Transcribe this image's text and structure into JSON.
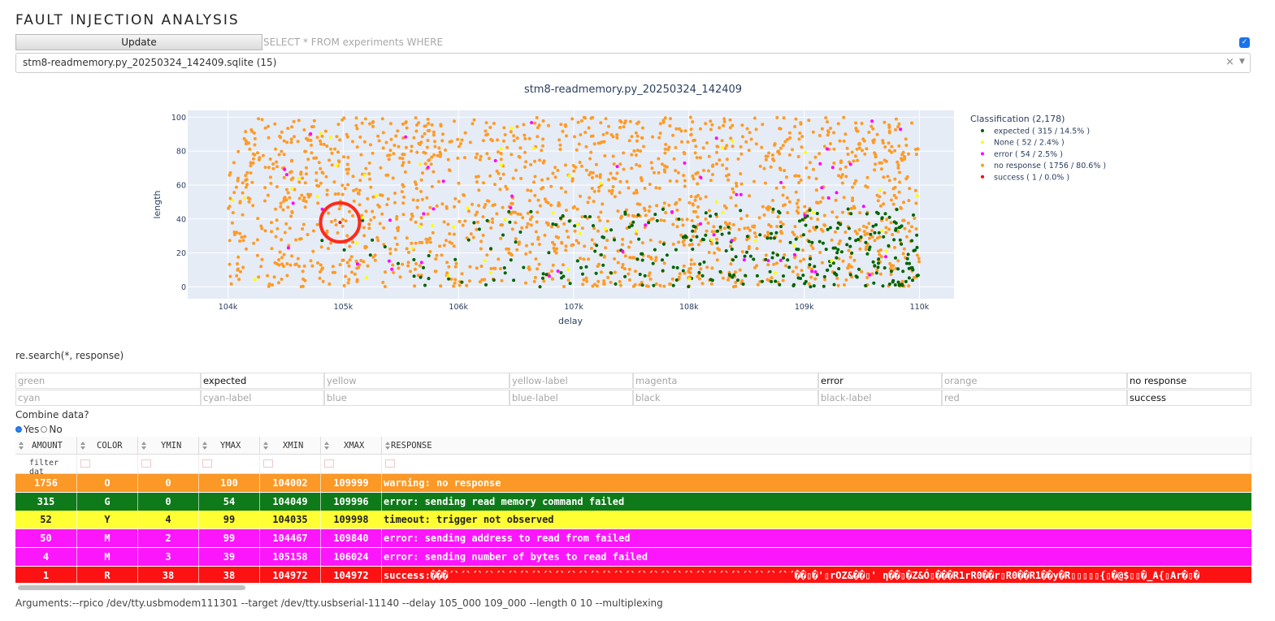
{
  "app_title": "FAULT INJECTION ANALYSIS",
  "toolbar": {
    "update_label": "Update",
    "query_placeholder": "SELECT * FROM experiments WHERE",
    "query_value": ""
  },
  "database_select": {
    "value": "stm8-readmemory.py_20250324_142409.sqlite (15)"
  },
  "chart_data": {
    "type": "scatter",
    "title": "stm8-readmemory.py_20250324_142409",
    "xlabel": "delay",
    "ylabel": "length",
    "xlim": [
      103650,
      110300
    ],
    "ylim": [
      -7,
      104
    ],
    "x_ticks": [
      104000,
      105000,
      106000,
      107000,
      108000,
      109000,
      110000
    ],
    "x_tick_labels": [
      "104k",
      "105k",
      "106k",
      "107k",
      "108k",
      "109k",
      "110k"
    ],
    "y_ticks": [
      0,
      20,
      40,
      60,
      80,
      100
    ],
    "y_tick_labels": [
      "0",
      "20",
      "40",
      "60",
      "80",
      "100"
    ],
    "grid": true,
    "background": "#e5ecf6",
    "legend": {
      "title": "Classification (2,178)",
      "placement": "right"
    },
    "series": [
      {
        "name": "expected ( 315 / 14.5% )",
        "color": "#006400",
        "count": 315,
        "x_range": [
          104049,
          109996
        ],
        "y_range": [
          0,
          54
        ]
      },
      {
        "name": "None ( 52 / 2.4% )",
        "color": "#ffff00",
        "count": 52,
        "x_range": [
          104035,
          109998
        ],
        "y_range": [
          4,
          99
        ]
      },
      {
        "name": "error ( 54 / 2.5% )",
        "color": "#ff00ff",
        "count": 54,
        "x_range": [
          104467,
          109840
        ],
        "y_range": [
          2,
          99
        ]
      },
      {
        "name": "no response ( 1756 / 80.6% )",
        "color": "#ff9a25",
        "count": 1756,
        "x_range": [
          104002,
          109999
        ],
        "y_range": [
          0,
          100
        ]
      },
      {
        "name": "success ( 1 / 0.0% )",
        "color": "#ff0000",
        "count": 1,
        "points": [
          [
            104972,
            38
          ]
        ]
      }
    ],
    "annotation": {
      "shape": "circle",
      "color": "#ff2a1a",
      "center": [
        104972,
        38
      ]
    }
  },
  "regex_label": "re.search(*, response)",
  "color_labels": [
    [
      {
        "placeholder": "green",
        "value": ""
      },
      {
        "placeholder": "",
        "value": "expected"
      },
      {
        "placeholder": "yellow",
        "value": ""
      },
      {
        "placeholder": "yellow-label",
        "value": ""
      },
      {
        "placeholder": "magenta",
        "value": ""
      },
      {
        "placeholder": "",
        "value": "error"
      },
      {
        "placeholder": "orange",
        "value": ""
      },
      {
        "placeholder": "",
        "value": "no response"
      }
    ],
    [
      {
        "placeholder": "cyan",
        "value": ""
      },
      {
        "placeholder": "cyan-label",
        "value": ""
      },
      {
        "placeholder": "blue",
        "value": ""
      },
      {
        "placeholder": "blue-label",
        "value": ""
      },
      {
        "placeholder": "black",
        "value": ""
      },
      {
        "placeholder": "black-label",
        "value": ""
      },
      {
        "placeholder": "red",
        "value": ""
      },
      {
        "placeholder": "",
        "value": "success"
      }
    ]
  ],
  "combine": {
    "label": "Combine data?",
    "options": [
      "Yes",
      "No"
    ],
    "selected": "Yes"
  },
  "table": {
    "columns": [
      "AMOUNT",
      "COLOR",
      "YMIN",
      "YMAX",
      "XMIN",
      "XMAX",
      "RESPONSE"
    ],
    "filter_placeholder": "filter dat",
    "rows": [
      {
        "amount": "1756",
        "color": "O",
        "ymin": "0",
        "ymax": "100",
        "xmin": "104002",
        "xmax": "109999",
        "response": "warning: no response",
        "bg": "#fb9826"
      },
      {
        "amount": "315",
        "color": "G",
        "ymin": "0",
        "ymax": "54",
        "xmin": "104049",
        "xmax": "109996",
        "response": "error: sending read memory command failed",
        "bg": "#0f7a1a"
      },
      {
        "amount": "52",
        "color": "Y",
        "ymin": "4",
        "ymax": "99",
        "xmin": "104035",
        "xmax": "109998",
        "response": "timeout: trigger not observed",
        "bg": "#ffff33"
      },
      {
        "amount": "50",
        "color": "M",
        "ymin": "2",
        "ymax": "99",
        "xmin": "104467",
        "xmax": "109840",
        "response": "error: sending address to read from failed",
        "bg": "#fc16fc"
      },
      {
        "amount": "4",
        "color": "M",
        "ymin": "3",
        "ymax": "39",
        "xmin": "105158",
        "xmax": "106024",
        "response": "error: sending number of bytes to read failed",
        "bg": "#fc16fc"
      },
      {
        "amount": "1",
        "color": "R",
        "ymin": "38",
        "ymax": "38",
        "xmin": "104972",
        "xmax": "104972",
        "response": "success:���´`´`´`´`´`´`´`´`´`´`´`´`´`´`´`´`´`´`´`´`´`´`´`´`´`´`´`´`´`´��▯�'▯rOZ&��▯' η��▯�Z&Ó▯���R1rR0��r▯R0��R1��y�R▯▯▯▯▯{▯�@$▯▯�_A{▯Ar�▯�",
        "bg": "#fc1212"
      }
    ]
  },
  "arguments": "Arguments:--rpico /dev/tty.usbmodem111301 --target /dev/tty.usbserial-11140 --delay 105_000 109_000 --length 0 10 --multiplexing"
}
